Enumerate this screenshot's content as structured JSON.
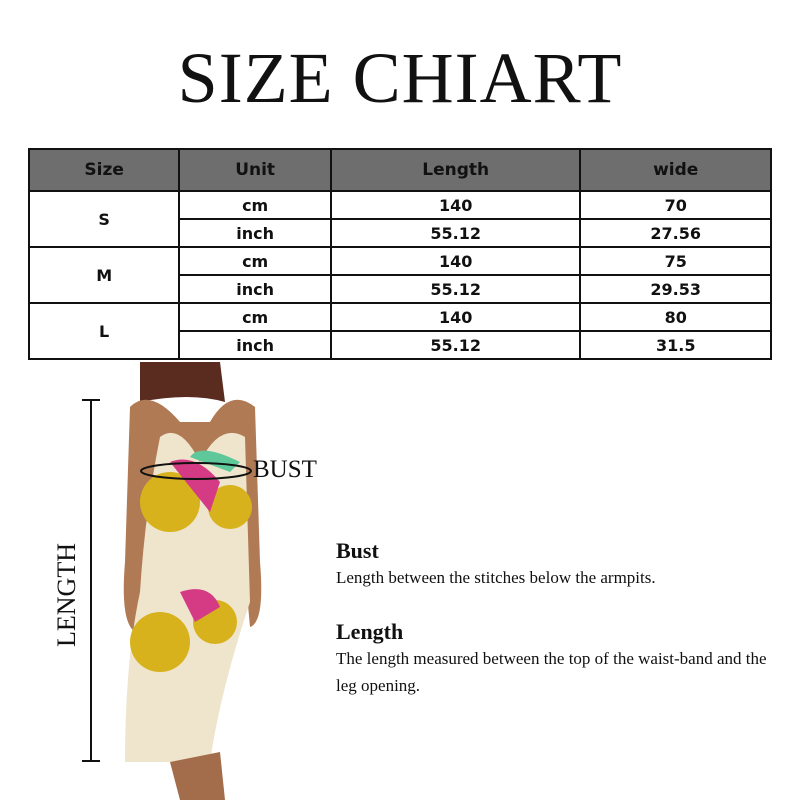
{
  "title": "SIZE CHIART",
  "table": {
    "headers": [
      "Size",
      "Unit",
      "Length",
      "wide"
    ],
    "rows": [
      {
        "size": "S",
        "cm": {
          "unit": "cm",
          "length": "140",
          "wide": "70"
        },
        "inch": {
          "unit": "inch",
          "length": "55.12",
          "wide": "27.56"
        }
      },
      {
        "size": "M",
        "cm": {
          "unit": "cm",
          "length": "140",
          "wide": "75"
        },
        "inch": {
          "unit": "inch",
          "length": "55.12",
          "wide": "29.53"
        }
      },
      {
        "size": "L",
        "cm": {
          "unit": "cm",
          "length": "140",
          "wide": "80"
        },
        "inch": {
          "unit": "inch",
          "length": "55.12",
          "wide": "31.5"
        }
      }
    ]
  },
  "diagram": {
    "length_label": "LENGTH",
    "bust_label": "BUST"
  },
  "descriptions": [
    {
      "term": "Bust",
      "text": "Length between the stitches below the armpits."
    },
    {
      "term": "Length",
      "text": "The length measured between the top of the waist-band and the leg opening."
    }
  ]
}
